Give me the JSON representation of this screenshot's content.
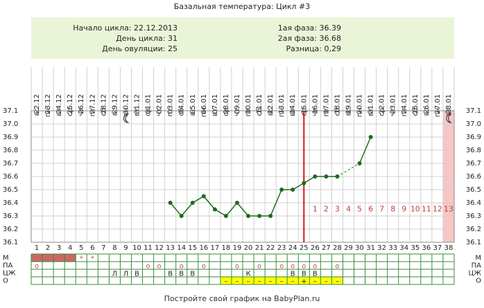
{
  "chart_data": {
    "type": "line",
    "title": "Базальная температура: Цикл #3",
    "info_left": [
      "Начало цикла: 22.12.2013",
      "День цикла: 31",
      "День овуляции: 25"
    ],
    "info_right": [
      "1ая фаза: 36.39",
      "2ая фаза: 36.68",
      "Разница: 0,29"
    ],
    "weekdays": [
      "вс",
      "пн",
      "вт",
      "ср",
      "чт",
      "пт",
      "сб",
      "вс",
      "пн",
      "вт",
      "ср",
      "чт",
      "пт",
      "сб",
      "вс",
      "пн",
      "вт",
      "ср",
      "чт",
      "пт",
      "сб",
      "вс",
      "пн",
      "вт",
      "ср",
      "чт",
      "пт",
      "сб",
      "вс",
      "пн",
      "вт",
      "ср",
      "чт",
      "пт",
      "сб",
      "вс",
      "пн",
      "вт"
    ],
    "dates": [
      "22.12",
      "23.12",
      "24.12",
      "25.12",
      "26.12",
      "27.12",
      "28.12",
      "29.12",
      "30.12",
      "31.12",
      "01.01",
      "02.01",
      "03.01",
      "04.01",
      "05.01",
      "06.01",
      "07.01",
      "08.01",
      "09.01",
      "10.01",
      "11.01",
      "12.01",
      "13.01",
      "14.01",
      "15.01",
      "16.01",
      "17.01",
      "18.01",
      "19.01",
      "20.01",
      "21.01",
      "22.01",
      "23.01",
      "24.01",
      "25.01",
      "26.01",
      "27.01",
      "28.01"
    ],
    "x": [
      1,
      2,
      3,
      4,
      5,
      6,
      7,
      8,
      9,
      10,
      11,
      12,
      13,
      14,
      15,
      16,
      17,
      18,
      19,
      20,
      21,
      22,
      23,
      24,
      25,
      26,
      27,
      28,
      29,
      30,
      31,
      32,
      33,
      34,
      35,
      36,
      37,
      38
    ],
    "series": [
      {
        "color": "#1d6b1d",
        "values": [
          null,
          null,
          null,
          null,
          null,
          null,
          null,
          null,
          null,
          null,
          null,
          null,
          36.4,
          36.3,
          36.4,
          36.45,
          36.35,
          36.3,
          36.4,
          36.3,
          36.3,
          36.3,
          36.5,
          36.5,
          36.55,
          36.6,
          36.6,
          36.6,
          null,
          36.7,
          36.9,
          null,
          null,
          null,
          null,
          null,
          null,
          null
        ]
      }
    ],
    "ylim": [
      36.1,
      37.1
    ],
    "yticks": [
      36.1,
      36.2,
      36.3,
      36.4,
      36.5,
      36.6,
      36.7,
      36.8,
      36.9,
      {
        "value": 37,
        "label": "37.0"
      },
      37.1
    ],
    "grid": true,
    "ovulation_day": 25,
    "ovulation_color": "#dd1111",
    "highlight_day": 38,
    "highlight_color": "#f7c6c6",
    "phase2_start_day": 26,
    "phase2_day_labels": [
      1,
      2,
      3,
      4,
      5,
      6,
      7,
      8,
      9,
      10,
      11,
      12,
      13
    ],
    "phase2_label_value": 36.35,
    "phase2_label_color": "#c04040",
    "rows": [
      {
        "label": "М",
        "fill_days": [
          1,
          2,
          3,
          4
        ],
        "fill_color": "#cc6666",
        "cells": [
          null,
          null,
          null,
          null,
          "*",
          "*",
          null,
          null,
          null,
          null,
          null,
          null,
          null,
          null,
          null,
          null,
          null,
          null,
          null,
          null,
          null,
          null,
          null,
          null,
          null,
          null,
          null,
          null,
          null,
          null,
          null,
          null,
          null,
          null,
          null,
          null,
          null,
          null
        ],
        "text_color": "#c05050"
      },
      {
        "label": "ПА",
        "cells": [
          "о",
          null,
          null,
          null,
          null,
          null,
          null,
          null,
          null,
          null,
          "о",
          "о",
          null,
          "о",
          null,
          "о",
          null,
          null,
          "о",
          null,
          "о",
          null,
          "о",
          "о",
          "о",
          "о",
          null,
          "о",
          null,
          null,
          null,
          null,
          null,
          null,
          null,
          null,
          null,
          null
        ],
        "text_color": "#c05050"
      },
      {
        "label": "ЦЖ",
        "cells": [
          null,
          null,
          null,
          null,
          null,
          null,
          null,
          "Л",
          "Л",
          "В",
          null,
          null,
          "В",
          "В",
          "В",
          null,
          null,
          null,
          null,
          "К",
          null,
          null,
          null,
          "В",
          "В",
          "В",
          null,
          null,
          null,
          null,
          null,
          null,
          null,
          null,
          null,
          null,
          null,
          null
        ],
        "text_color": "#222222"
      },
      {
        "label": "О",
        "fill_days": [
          18,
          19,
          20,
          21,
          22,
          23,
          24,
          25,
          26,
          27,
          28
        ],
        "fill_color": "#ffff00",
        "cells": [
          null,
          null,
          null,
          null,
          null,
          null,
          null,
          null,
          null,
          null,
          null,
          null,
          null,
          null,
          null,
          null,
          null,
          "–",
          "–",
          "–",
          "–",
          "–",
          "–",
          "–",
          "+",
          "–",
          "–",
          "–",
          null,
          null,
          null,
          null,
          null,
          null,
          null,
          null,
          null,
          null
        ],
        "text_color": "#222222"
      }
    ],
    "footer": "Постройте свой график на BabyPlan.ru"
  }
}
